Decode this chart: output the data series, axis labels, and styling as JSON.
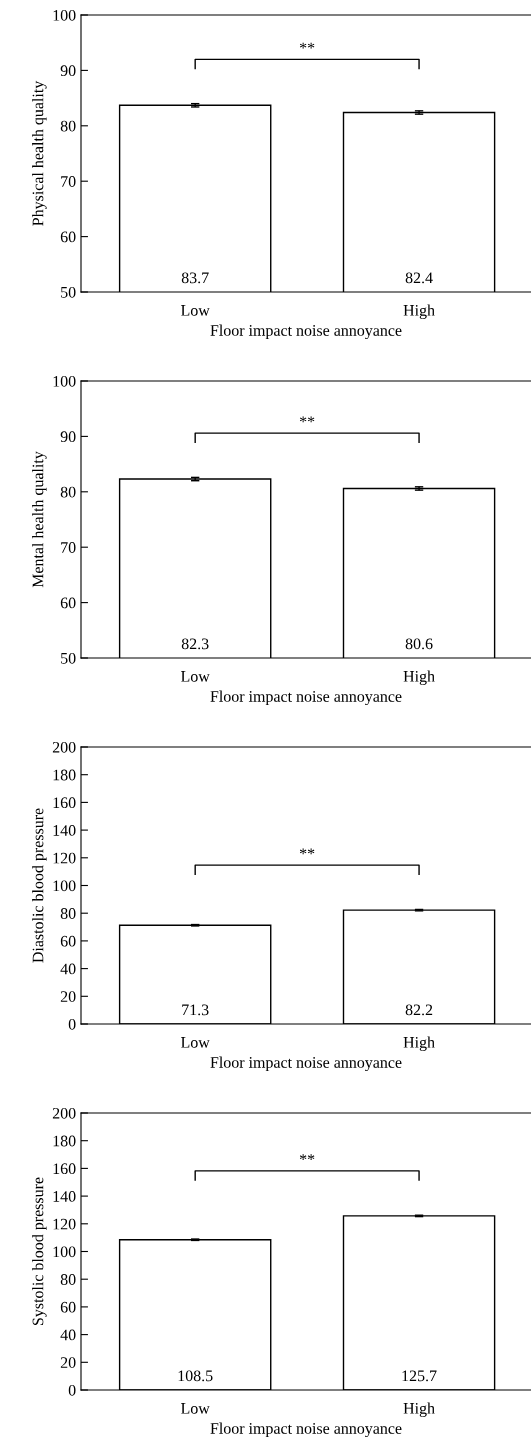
{
  "chart_data": [
    {
      "type": "bar",
      "categories": [
        "Low",
        "High"
      ],
      "values": [
        83.7,
        82.4
      ],
      "errors": [
        0.3,
        0.3
      ],
      "color": "#ffffff",
      "xlabel": "Floor impact noise annoyance",
      "ylabel": "Physical health quality",
      "ylim": [
        50,
        100
      ],
      "yticks": [
        50,
        60,
        70,
        80,
        90,
        100
      ],
      "data_labels": true,
      "grid": false,
      "legend": false,
      "annotations": [
        "**"
      ]
    },
    {
      "type": "bar",
      "categories": [
        "Low",
        "High"
      ],
      "values": [
        82.3,
        80.6
      ],
      "errors": [
        0.3,
        0.3
      ],
      "color": "#ffffff",
      "xlabel": "Floor impact noise annoyance",
      "ylabel": "Mental health quality",
      "ylim": [
        50,
        100
      ],
      "yticks": [
        50,
        60,
        70,
        80,
        90,
        100
      ],
      "data_labels": true,
      "grid": false,
      "legend": false,
      "annotations": [
        "**"
      ]
    },
    {
      "type": "bar",
      "categories": [
        "Low",
        "High"
      ],
      "values": [
        71.3,
        82.2
      ],
      "errors": [
        0.5,
        0.5
      ],
      "color": "#ffffff",
      "xlabel": "Floor impact noise annoyance",
      "ylabel": "Diastolic blood pressure",
      "ylim": [
        0,
        200
      ],
      "yticks": [
        0,
        20,
        40,
        60,
        80,
        100,
        120,
        140,
        160,
        180,
        200
      ],
      "data_labels": true,
      "grid": false,
      "legend": false,
      "annotations": [
        "**"
      ]
    },
    {
      "type": "bar",
      "categories": [
        "Low",
        "High"
      ],
      "values": [
        108.5,
        125.7
      ],
      "errors": [
        0.5,
        0.5
      ],
      "color": "#ffffff",
      "xlabel": "Floor impact noise annoyance",
      "ylabel": "Systolic blood pressure",
      "ylim": [
        0,
        200
      ],
      "yticks": [
        0,
        20,
        40,
        60,
        80,
        100,
        120,
        140,
        160,
        180,
        200
      ],
      "data_labels": true,
      "grid": false,
      "legend": false,
      "annotations": [
        "**"
      ]
    }
  ]
}
